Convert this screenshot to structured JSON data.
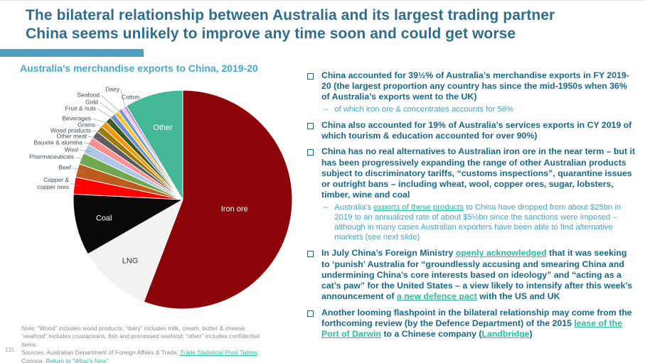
{
  "page_number": "131",
  "title": {
    "lines": [
      "The bilateral relationship between Australia and its largest trading partner",
      "China seems unlikely to improve any time soon and could get worse"
    ]
  },
  "colors": {
    "title": "#2E6D8E",
    "accent_bar": "#4EA0C3",
    "bullet_text": "#19688C",
    "sub_bullet_text": "#45A4C8",
    "link": "#29BE9B",
    "chart_title": "#47A8CC",
    "note_text": "#8A8A8A",
    "pie_label": "#424D57"
  },
  "chart_data": {
    "type": "pie",
    "title": "Australia’s merchandise exports to China, 2019-20",
    "value_unit": "percent share (estimated from slice angles)",
    "start_angle_deg": 0,
    "direction": "clockwise",
    "slices": [
      {
        "label": "Iron ore",
        "value": 55.8,
        "color": "#8C0609",
        "label_placement": "inside"
      },
      {
        "label": "LNG",
        "value": 10.9,
        "color": "#F2F2F2",
        "label_placement": "inside"
      },
      {
        "label": "Coal",
        "value": 9.1,
        "color": "#0A0A0A",
        "label_placement": "inside"
      },
      {
        "label": "Copper & copper ores",
        "value": 2.5,
        "color": "#FE0000",
        "label_placement": "outside"
      },
      {
        "label": "Beef",
        "value": 2.0,
        "color": "#BE5C1E",
        "label_placement": "outside"
      },
      {
        "label": "Pharmaceuticals",
        "value": 1.7,
        "color": "#71A84E",
        "label_placement": "outside"
      },
      {
        "label": "Wool",
        "value": 1.4,
        "color": "#AEC7E8",
        "label_placement": "outside"
      },
      {
        "label": "Bauxite & alumina",
        "value": 1.2,
        "color": "#FC8F8F",
        "label_placement": "outside"
      },
      {
        "label": "Other meat",
        "value": 1.1,
        "color": "#5E5E5E",
        "label_placement": "outside"
      },
      {
        "label": "Wood products",
        "value": 1.0,
        "color": "#9C7A06",
        "label_placement": "outside"
      },
      {
        "label": "Grains",
        "value": 0.9,
        "color": "#FC9609",
        "label_placement": "outside"
      },
      {
        "label": "Beverages",
        "value": 0.9,
        "color": "#3A5B21",
        "label_placement": "outside"
      },
      {
        "label": "Fruit & nuts",
        "value": 0.8,
        "color": "#6B8ED0",
        "label_placement": "outside"
      },
      {
        "label": "Gold",
        "value": 0.7,
        "color": "#FFC52E",
        "label_placement": "outside"
      },
      {
        "label": "Seafood",
        "value": 0.6,
        "color": "#7395D8",
        "label_placement": "outside"
      },
      {
        "label": "Dairy",
        "value": 0.4,
        "color": "#F2C3EF",
        "label_placement": "outside"
      },
      {
        "label": "Cotton",
        "value": 0.4,
        "color": "#BA8FD9",
        "label_placement": "outside"
      },
      {
        "label": "Other",
        "value": 8.6,
        "color": "#44B795",
        "label_placement": "inside"
      }
    ]
  },
  "bullets": [
    {
      "segments": [
        {
          "text": "China accounted for 39½% of Australia’s merchandise exports in FY 2019-20 (the largest proportion any country has since the mid-1950s when 36% of Australia’s exports went to the UK)"
        }
      ],
      "subs": [
        {
          "segments": [
            {
              "text": "of which iron ore & concentrates accounts for 56%"
            }
          ]
        }
      ]
    },
    {
      "segments": [
        {
          "text": "China also accounted for 19% of Australia’s services exports in CY 2019 of which tourism & education accounted for over 90%)"
        }
      ],
      "subs": []
    },
    {
      "segments": [
        {
          "text": "China has no real alternatives to Australian iron ore in the near term – but it has been progressively expanding the range of other Australian products subject to discriminatory tariffs, “customs inspections”, quarantine issues or outright bans – including wheat, wool, copper ores, sugar, lobsters, timber, wine and coal"
        }
      ],
      "subs": [
        {
          "segments": [
            {
              "text": "Australia’s "
            },
            {
              "text": "exports of these products",
              "link": true
            },
            {
              "text": " to China have dropped from about $25bn in 2019 to an annualized rate of about $5½bn since the sanctions were imposed – although in many cases Australian exporters have been able to find alternative markets (see next slide)"
            }
          ]
        }
      ]
    },
    {
      "segments": [
        {
          "text": "In July China’s Foreign Ministry "
        },
        {
          "text": "openly acknowledged",
          "link": true
        },
        {
          "text": " that it was seeking to ‘punish’ Australia for “groundlessly accusing and smearing China and undermining China’s core interests based on ideology” and “acting as a cat’s paw” for the United States – a view likely to intensify after this week’s announcement of "
        },
        {
          "text": "a new defence pact",
          "link": true
        },
        {
          "text": " with the US and UK"
        }
      ],
      "subs": []
    },
    {
      "segments": [
        {
          "text": "Another looming flashpoint in the bilateral relationship may come from the forthcoming review (by the Defence Department) of the 2015 "
        },
        {
          "text": "lease of the Port of Darwin",
          "link": true
        },
        {
          "text": " to a Chinese company ("
        },
        {
          "text": "Landbridge",
          "link": true
        },
        {
          "text": ")"
        }
      ],
      "subs": []
    }
  ],
  "note": {
    "lines": [
      {
        "segments": [
          {
            "text": "Note:",
            "italic": true
          },
          {
            "text": " “Wood” includes wood products; “dairy” includes milk, cream, butter & cheese; “seafood” includes crustaceans, fish and processed seafood; “other” includes confidential items."
          }
        ]
      },
      {
        "segments": [
          {
            "text": "Sources:",
            "italic": true
          },
          {
            "text": " Australian Department of Foreign Affairs & Trade, "
          },
          {
            "text": "Trade Statistical Pivot Tables",
            "link": true
          },
          {
            "text": "; Corinna. "
          },
          {
            "text": "Return to “What’s New”",
            "link": true
          },
          {
            "text": "."
          }
        ]
      }
    ]
  }
}
